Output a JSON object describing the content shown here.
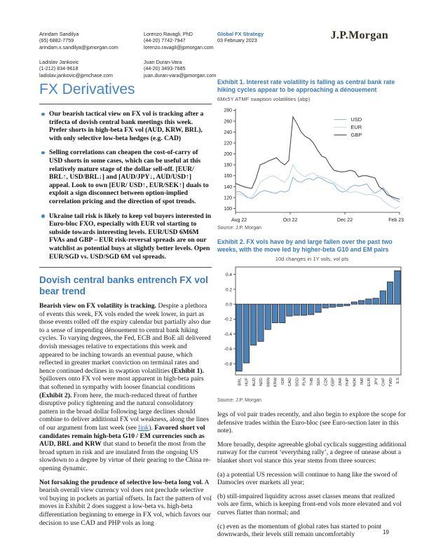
{
  "header": {
    "contacts": [
      {
        "name": "Arindam Sandilya",
        "phone": "(65) 6882-7759",
        "email": "arindam.x.sandilya@jpmorgan.com"
      },
      {
        "name": "Lorenzo Ravagli, PhD",
        "phone": "(44-20) 7742-7947",
        "email": "lorenzo.ravagli@jpmorgan.com"
      },
      {
        "name": "Ladislav Jankovic",
        "phone": "(1-212) 834-9618",
        "email": "ladislav.jankovic@jpmchase.com"
      },
      {
        "name": "Juan Duran-Vara",
        "phone": "(44-20) 3493-7685",
        "email": "juan.duran-vara@jpmorgan.com"
      }
    ],
    "publication": "Global FX Strategy",
    "date": "03 February 2023",
    "brand": "J.P.Morgan"
  },
  "page": {
    "number": "19",
    "title": "FX Derivatives"
  },
  "bullets": [
    "Our bearish tactical view on FX vol is tracking after a trifecta of dovish central bank meetings this week. Prefer shorts in high-beta FX vol (AUD, KRW, BRL), with only selective low-beta hedges (e.g. CAD)",
    "Selling correlations can cheapen the cost-of-carry of USD shorts in some cases, which can be useful at this relatively mature stage of the dollar sell-off. [EUR/ BRL↑, USD/BRL↓] and [AUD/JPY↓, AUD/USD↑] appeal. Look to own [EUR/ USD↑, EUR/SEK↑] duals to exploit a sign disconnect between option-implied correlation pricing and the direction of spot trends.",
    "Ukraine tail risk is likely to keep vol buyers interested in Euro-bloc FXO, especially with EUR vol starting to subside towards interesting levels. EUR/USD 6M6M FVAs and GBP – EUR risk-reversal spreads are on our watchlist as potential buys at slightly better levels. Open EUR/SGD vs. USD/SGD 6M vol spreads."
  ],
  "section_heading": "Dovish central banks entrench FX vol bear trend",
  "left_paragraphs": [
    [
      {
        "t": "Bearish view on FX volatility is tracking.",
        "b": true
      },
      {
        "t": " Despite a plethora of events this week, FX vols ended the week lower, in part as those events rolled off the expiry calendar but partially also due to a sense of impending dénouement to central bank hiking cycles. To varying degrees, the Fed, ECB and BoE all delivered dovish messages relative to expectations this week and appeared to be inching towards an eventual pause, which reflected in greater market conviction on terminal rates and hence continued declines in swaption volatilities "
      },
      {
        "t": "(Exhibit 1).",
        "b": true
      },
      {
        "t": " Spillovers onto FX vol were most apparent in high-beta pairs that softened in sympathy with looser financial conditions "
      },
      {
        "t": "(Exhibit 2).",
        "b": true
      },
      {
        "t": " From here, the much-reduced threat of further disruptive policy tightening and the natural consolidatory pattern in the broad dollar following large declines should combine to deliver additional FX vol weakness, along the lines of our argument from last week (see "
      },
      {
        "t": "link",
        "link": true
      },
      {
        "t": "). "
      },
      {
        "t": "Favored short vol candidates remain high-beta G10 / EM currencies such as AUD, BRL and KRW",
        "b": true
      },
      {
        "t": " that stand to benefit the most from the broad upturn in risk and are insulated from the ongoing US slowdown to a degree by virtue of their gearing to the China re-opening dynamic."
      }
    ],
    [
      {
        "t": "Not forsaking the prudence of selective low-beta long vol.",
        "b": true
      },
      {
        "t": " A bearish overall view currency vol does not preclude selective vol buying in pockets as partial offsets. In fact the pattern of vol moves in Exhibit 2 does suggest a low-beta vs. high-beta differentiation beginning to emerge in FX vol, which favors our decision to use CAD and PHP vols as long"
      }
    ]
  ],
  "right_paragraphs": [
    "legs of vol pair trades recently, and also begin to explore the scope for defensive trades within the Euro-bloc (see Euro-section later in this note).",
    "More broadly, despite agreeable global cyclicals suggesting additional runway for the current ‘everything rally’, a degree of unease about a blanket short vol stance this year stems from three sources:",
    "(a) a potential US recession will continue to hang like the sword of Damocles over markets all year;",
    "(b) still-impaired liquidity across asset classes means that realized vols are firm, which is keeping front-end vols more elevated and vol curves flatter than normal; and",
    "(c) even as the momentum of global rates has started to point downwards, their levels still remain uncomfortably"
  ],
  "exhibits": [
    {
      "title": "Exhibit 1. Interest rate volatility is falling as central bank rate hiking cycles appear to be approaching a dénouement",
      "subtitle": "6Mx5Y ATMF swaption volatilities (abp)",
      "source": "Source: J.P. Morgan"
    },
    {
      "title": "Exhibit 2. FX vols have by and large fallen over the past two weeks, with the move led by higher-beta G10 and EM pairs",
      "subtitle": "10d changes in 1Y vols, vol pts",
      "source": "Source: J.P. Morgan"
    }
  ],
  "colors": {
    "heading_blue": "#3879bd",
    "title_blue": "#4285c4",
    "pub_blue": "#3672b5",
    "bar_fill": "#4d82b8",
    "usd_line": "#8aaed0",
    "eur_line": "#c3d5e5",
    "gbp_line": "#3d3d3d"
  },
  "chart_data": [
    {
      "type": "line",
      "title": "6Mx5Y ATMF swaption volatilities (abp)",
      "xlabel": "",
      "ylabel": "",
      "ylim": [
        93,
        283
      ],
      "yticks": [
        100,
        120,
        140,
        160,
        180,
        200,
        220,
        240,
        260,
        280
      ],
      "x_ticklabels": [
        "Aug 22",
        "Oct 22",
        "Dec 22",
        "Feb 23"
      ],
      "grid": false,
      "legend_position": "upper-right-inside",
      "series": [
        {
          "name": "USD",
          "color": "#8aaed0",
          "values": [
            130,
            131,
            126,
            120,
            118,
            124,
            130,
            133,
            131,
            129,
            128,
            132,
            130,
            133,
            157,
            150,
            148,
            153,
            155,
            152,
            157,
            155,
            150,
            147,
            145,
            134,
            130,
            132,
            139,
            143,
            141,
            143,
            145,
            135,
            128,
            132,
            138,
            130,
            120,
            116,
            112
          ]
        },
        {
          "name": "EUR",
          "color": "#c3d5e5",
          "values": [
            124,
            127,
            123,
            119,
            121,
            132,
            148,
            153,
            157,
            160,
            157,
            152,
            148,
            158,
            180,
            168,
            162,
            158,
            163,
            165,
            160,
            158,
            156,
            152,
            148,
            143,
            138,
            132,
            129,
            131,
            130,
            127,
            125,
            126,
            124,
            121,
            115,
            108,
            103,
            100,
            104
          ]
        },
        {
          "name": "GBP",
          "color": "#3d3d3d",
          "values": [
            146,
            143,
            140,
            138,
            137,
            155,
            180,
            183,
            187,
            190,
            193,
            185,
            180,
            188,
            268,
            255,
            240,
            232,
            228,
            220,
            207,
            196,
            193,
            180,
            170,
            168,
            167,
            168,
            170,
            168,
            158,
            160,
            160,
            158,
            156,
            140,
            135,
            125,
            122,
            119,
            117
          ]
        }
      ]
    },
    {
      "type": "bar",
      "title": "10d changes in 1Y vols, vol pts",
      "xlabel": "",
      "ylabel": "",
      "categories": [
        "BRL",
        "HUF",
        "AUD",
        "NZD",
        "MXN",
        "KRW",
        "IDR",
        "CAD",
        "SGD",
        "PLN",
        "THB",
        "SEK",
        "CZK",
        "GBP",
        "ZAR",
        "PHP",
        "NOK",
        "INR",
        "EUR",
        "JPY",
        "CHF",
        "TWD",
        "ILS"
      ],
      "values": [
        -0.9,
        -0.79,
        -0.55,
        -0.5,
        -0.34,
        -0.25,
        -0.25,
        -0.16,
        -0.15,
        -0.15,
        -0.14,
        -0.11,
        -0.05,
        -0.04,
        -0.03,
        -0.02,
        0.03,
        0.05,
        0.07,
        0.08,
        0.18,
        0.3,
        0.45
      ],
      "ylim": [
        -0.95,
        0.5
      ],
      "yticks": [
        0.4,
        0.2,
        0.0,
        -0.2,
        -0.4,
        -0.6,
        -0.8
      ],
      "grid": false,
      "zero_line": "dashed",
      "bar_color": "#4d82b8",
      "bar_edge_color": "#1a1a1a"
    }
  ]
}
